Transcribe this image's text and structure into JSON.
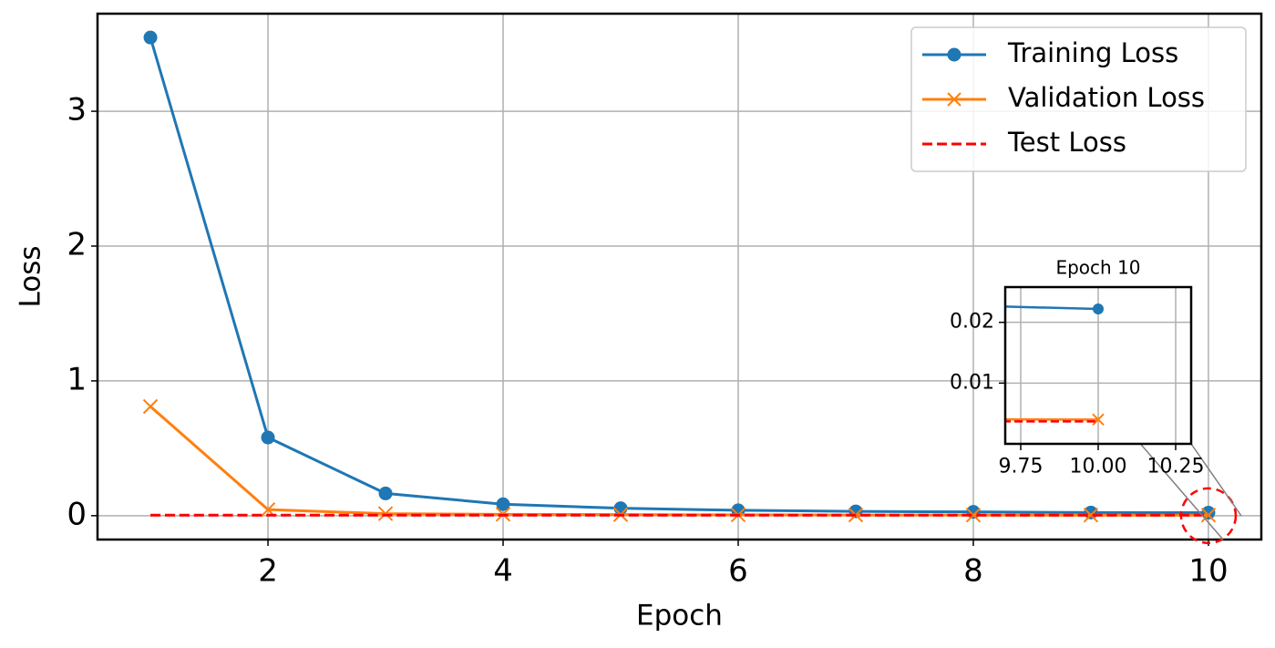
{
  "chart_data": {
    "type": "line",
    "xlabel": "Epoch",
    "ylabel": "Loss",
    "x": [
      1,
      2,
      3,
      4,
      5,
      6,
      7,
      8,
      9,
      10
    ],
    "series": [
      {
        "name": "Training Loss",
        "color": "#1f77b4",
        "marker": "o",
        "linestyle": "solid",
        "values": [
          3.547,
          0.58,
          0.165,
          0.085,
          0.055,
          0.04,
          0.032,
          0.028,
          0.0235,
          0.0222
        ]
      },
      {
        "name": "Validation Loss",
        "color": "#ff7f0e",
        "marker": "x",
        "linestyle": "solid",
        "values": [
          0.81,
          0.045,
          0.015,
          0.01,
          0.008,
          0.006,
          0.005,
          0.0045,
          0.0041,
          0.004
        ]
      },
      {
        "name": "Test Loss",
        "color": "#ff0000",
        "linestyle": "dashed",
        "values": [
          0.0037,
          0.0037,
          0.0037,
          0.0037,
          0.0037,
          0.0037,
          0.0037,
          0.0037,
          0.0037,
          0.0037
        ]
      }
    ],
    "xlim": [
      0.55,
      10.45
    ],
    "ylim": [
      -0.177,
      3.724
    ],
    "xticks": [
      2,
      4,
      6,
      8,
      10
    ],
    "yticks": [
      0,
      1,
      2,
      3
    ],
    "grid": true,
    "legend": "upper right",
    "inset": {
      "title": "Epoch 10",
      "xlim": [
        9.7,
        10.3
      ],
      "ylim": [
        0,
        0.0258
      ],
      "xticks": [
        9.75,
        {
          "value": 10,
          "label": "10.00"
        },
        10.25
      ],
      "yticks": [
        0.01,
        0.02
      ],
      "grid": true
    }
  }
}
